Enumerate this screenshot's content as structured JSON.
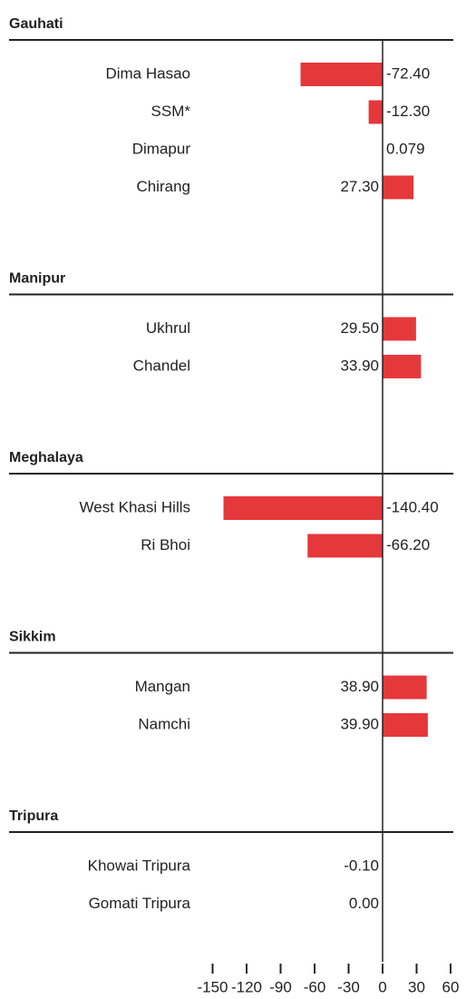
{
  "chart_data": {
    "type": "bar",
    "color": "#e5383b",
    "xlim": [
      -150,
      60
    ],
    "xticks": [
      -150,
      -120,
      -90,
      -60,
      -30,
      0,
      30,
      60
    ],
    "groups": [
      {
        "name": "Gauhati",
        "categories": [
          "Dima Hasao",
          "SSM*",
          "Dimapur",
          "Chirang"
        ],
        "values": [
          -72.4,
          -12.3,
          0.079,
          27.3
        ],
        "value_labels": [
          "-72.40",
          "-12.30",
          "0.079",
          "27.30"
        ]
      },
      {
        "name": "Manipur",
        "categories": [
          "Ukhrul",
          "Chandel"
        ],
        "values": [
          29.5,
          33.9
        ],
        "value_labels": [
          "29.50",
          "33.90"
        ]
      },
      {
        "name": "Meghalaya",
        "categories": [
          "West Khasi Hills",
          "Ri Bhoi"
        ],
        "values": [
          -140.4,
          -66.2
        ],
        "value_labels": [
          "-140.40",
          "-66.20"
        ]
      },
      {
        "name": "Sikkim",
        "categories": [
          "Mangan",
          "Namchi"
        ],
        "values": [
          38.9,
          39.9
        ],
        "value_labels": [
          "38.90",
          "39.90"
        ]
      },
      {
        "name": "Tripura",
        "categories": [
          "Khowai Tripura",
          "Gomati Tripura"
        ],
        "values": [
          -0.1,
          0.0
        ],
        "value_labels": [
          "-0.10",
          "0.00"
        ]
      }
    ]
  }
}
